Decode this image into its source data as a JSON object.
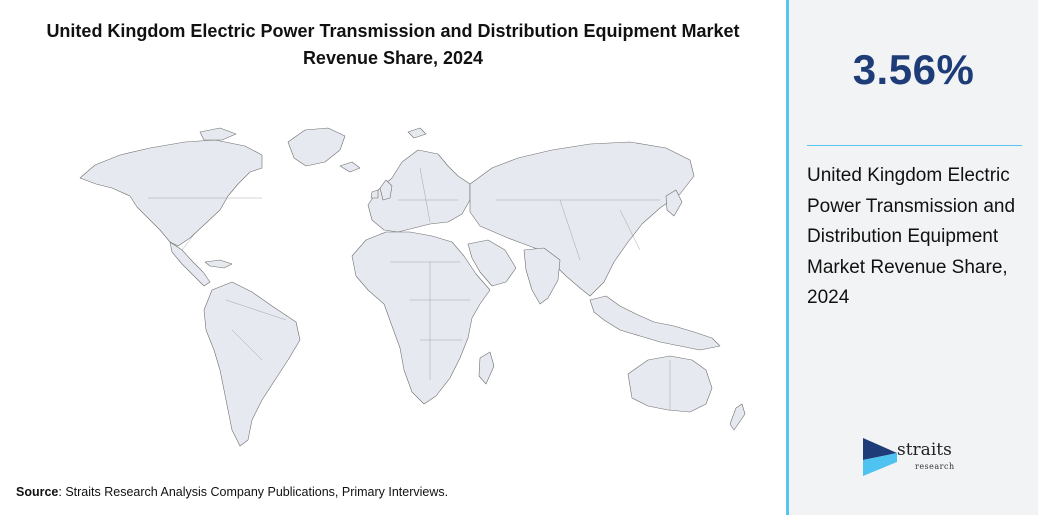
{
  "title_line1": "United Kingdom Electric Power Transmission and Distribution Equipment Market",
  "title_line2": "Revenue Share, 2024",
  "source": {
    "label": "Source",
    "text": ": Straits Research Analysis Company Publications, Primary Interviews."
  },
  "sidebar": {
    "value": "3.56%",
    "description": "United Kingdom Electric Power Transmission and Distribution Equipment Market Revenue Share, 2024",
    "logo_word": "straits",
    "logo_sub": "research"
  },
  "map_data": {
    "type": "world choropleth",
    "highlighted_region": "United Kingdom",
    "highlighted_value": "3.56%"
  },
  "colors": {
    "land_fill": "#e6e9ef",
    "border": "#6e6e6e",
    "accent_line": "#5bc4ee",
    "value_text": "#1d3c78",
    "logo_dark": "#1d3c78",
    "logo_light": "#4fc3f0"
  }
}
